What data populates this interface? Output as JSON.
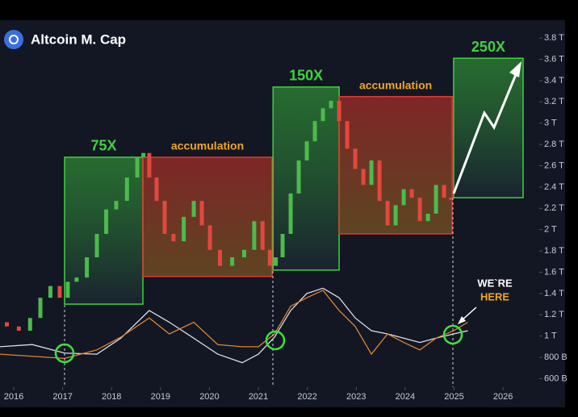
{
  "chart_data": {
    "type": "candlestick",
    "title": "Altcoin M. Cap",
    "xlim": [
      2015.72,
      2026.74
    ],
    "xticks": [
      2016,
      2017,
      2018,
      2019,
      2020,
      2021,
      2022,
      2023,
      2024,
      2025,
      2026
    ],
    "ylim": [
      0.52,
      3.93
    ],
    "yticks": [
      {
        "value": 0.6,
        "label": "600 B"
      },
      {
        "value": 0.8,
        "label": "800 B"
      },
      {
        "value": 1,
        "label": "1 T"
      },
      {
        "value": 1.2,
        "label": "1.2 T"
      },
      {
        "value": 1.4,
        "label": "1.4 T"
      },
      {
        "value": 1.6,
        "label": "1.6 T"
      },
      {
        "value": 1.8,
        "label": "1.8 T"
      },
      {
        "value": 2,
        "label": "2 T"
      },
      {
        "value": 2.2,
        "label": "2.2 T"
      },
      {
        "value": 2.4,
        "label": "2.4 T"
      },
      {
        "value": 2.6,
        "label": "2.6 T"
      },
      {
        "value": 2.8,
        "label": "2.8 T"
      },
      {
        "value": 3,
        "label": "3 T"
      },
      {
        "value": 3.2,
        "label": "3.2 T"
      },
      {
        "value": 3.4,
        "label": "3.4 T"
      },
      {
        "value": 3.6,
        "label": "3.6 T"
      },
      {
        "value": 3.8,
        "label": "3.8 T"
      }
    ],
    "up_color": "#4cbb4c",
    "down_color": "#e0493f",
    "x": [
      2015.72,
      2016.0,
      2016.21,
      2016.46,
      2016.63,
      2016.87,
      2017.01,
      2017.2,
      2017.37,
      2017.62,
      2017.78,
      2018.0,
      2018.19,
      2018.44,
      2018.61,
      2018.69,
      2018.85,
      2018.99,
      2019.18,
      2019.35,
      2019.6,
      2019.76,
      2019.93,
      2020.09,
      2020.34,
      2020.59,
      2020.83,
      2021.0,
      2021.17,
      2021.3,
      2021.41,
      2021.58,
      2021.74,
      2021.91,
      2022.07,
      2022.24,
      2022.4,
      2022.57,
      2022.73,
      2022.9,
      2023.06,
      2023.23,
      2023.39,
      2023.56,
      2023.72,
      2023.89,
      2024.05,
      2024.22,
      2024.38,
      2024.55,
      2024.71,
      2024.88,
      2024.99
    ],
    "values": [
      1.13,
      1.09,
      1.05,
      1.17,
      1.36,
      1.47,
      1.36,
      1.51,
      1.55,
      1.74,
      1.96,
      2.19,
      2.27,
      2.49,
      2.68,
      2.72,
      2.49,
      2.27,
      1.96,
      1.89,
      2.12,
      2.27,
      2.04,
      1.81,
      1.66,
      1.74,
      1.81,
      2.08,
      1.81,
      1.66,
      1.74,
      1.96,
      2.34,
      2.65,
      2.83,
      3.02,
      3.14,
      3.21,
      3.02,
      2.76,
      2.57,
      2.42,
      2.65,
      2.27,
      2.04,
      2.23,
      2.38,
      2.3,
      2.08,
      2.15,
      2.42,
      2.3,
      2.28
    ],
    "indicator_x": [
      2015.72,
      2016.38,
      2017.04,
      2017.7,
      2018.19,
      2018.77,
      2019.18,
      2019.68,
      2020.17,
      2020.67,
      2021.0,
      2021.33,
      2021.66,
      2021.99,
      2022.32,
      2022.65,
      2022.98,
      2023.31,
      2023.64,
      2023.97,
      2024.3,
      2024.63,
      2024.99,
      2025.28
    ],
    "indicators": [
      {
        "color": "#d8dde6",
        "values": [
          0.9,
          0.92,
          0.84,
          0.83,
          0.98,
          1.24,
          1.13,
          0.98,
          0.83,
          0.75,
          0.83,
          0.99,
          1.24,
          1.4,
          1.45,
          1.36,
          1.17,
          1.05,
          1.02,
          0.98,
          0.94,
          0.98,
          1.02,
          1.05
        ]
      },
      {
        "color": "#e0842e",
        "values": [
          0.83,
          0.81,
          0.79,
          0.87,
          0.99,
          1.17,
          1.02,
          1.13,
          0.92,
          0.9,
          0.9,
          1.02,
          1.28,
          1.36,
          1.43,
          1.24,
          1.09,
          0.83,
          1.02,
          0.94,
          0.87,
          0.98,
          1.05,
          1.13
        ]
      }
    ],
    "zones": [
      {
        "label": "75X",
        "color": "#3fd23f",
        "label_color": "#3fd23f",
        "x": [
          2017.04,
          2018.64
        ],
        "y": [
          1.3,
          2.68
        ]
      },
      {
        "label": "accumulation",
        "color": "#e03a30",
        "label_color": "#f2a424",
        "x": [
          2018.64,
          2021.28
        ],
        "y": [
          1.56,
          2.68
        ]
      },
      {
        "label": "150X",
        "color": "#3fd23f",
        "label_color": "#3fd23f",
        "x": [
          2021.3,
          2022.65
        ],
        "y": [
          1.62,
          3.34
        ]
      },
      {
        "label": "accumulation",
        "color": "#e03a30",
        "label_color": "#f2a424",
        "x": [
          2022.65,
          2024.96
        ],
        "y": [
          1.96,
          3.25
        ]
      },
      {
        "label": "250X",
        "color": "#3fd23f",
        "label_color": "#3fd23f",
        "x": [
          2024.99,
          2026.41
        ],
        "y": [
          2.3,
          3.61
        ]
      }
    ],
    "annotation_lines": [
      "WE`RE",
      "HERE"
    ]
  }
}
